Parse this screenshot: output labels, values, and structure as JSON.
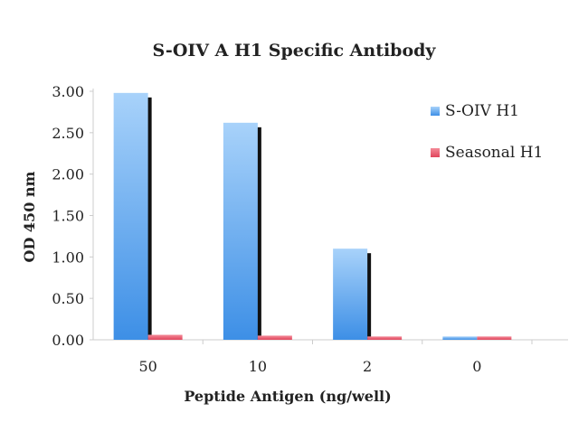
{
  "chart_data": {
    "type": "bar",
    "title": "S-OIV A H1 Specific Antibody",
    "xlabel": "Peptide Antigen (ng/well)",
    "ylabel": "OD 450 nm",
    "ylim": [
      0,
      3.0
    ],
    "yticks": [
      "0.00",
      "0.50",
      "1.00",
      "1.50",
      "2.00",
      "2.50",
      "3.00"
    ],
    "categories": [
      "50",
      "10",
      "2",
      "0"
    ],
    "series": [
      {
        "name": "S-OIV H1",
        "values": [
          2.98,
          2.62,
          1.1,
          0.04
        ],
        "color": "#5aa2ea"
      },
      {
        "name": "Seasonal H1",
        "values": [
          0.06,
          0.05,
          0.04,
          0.04
        ],
        "color": "#e8566a"
      }
    ],
    "grid": false,
    "legend": "top-right"
  }
}
